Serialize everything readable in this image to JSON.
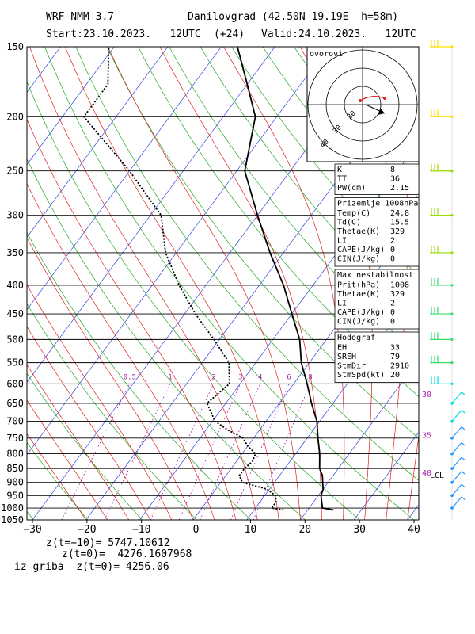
{
  "header": {
    "model": "WRF-NMM 3.7",
    "station": "Danilovgrad (42.50N 19.19E  h=58m)",
    "start": "Start:23.10.2023.   12UTC",
    "forecast": "(+24)",
    "valid": "Valid:24.10.2023.   12UTC"
  },
  "hodograph_inset": {
    "label": "ovorovi",
    "ring_labels": [
      "20",
      "30",
      "40"
    ]
  },
  "panels": {
    "indices": [
      {
        "k": "K",
        "v": "8"
      },
      {
        "k": "TT",
        "v": "36"
      },
      {
        "k": "PW(cm)",
        "v": "2.15"
      }
    ],
    "surface": {
      "title": "Prizemlje 1008hPa",
      "rows": [
        {
          "k": "Temp(C)",
          "v": "24.8"
        },
        {
          "k": "Td(C)",
          "v": "15.5"
        },
        {
          "k": "Thetae(K)",
          "v": "329"
        },
        {
          "k": "LI",
          "v": "2"
        },
        {
          "k": "CAPE(J/kg)",
          "v": "0"
        },
        {
          "k": "CIN(J/kg)",
          "v": "0"
        }
      ]
    },
    "max_instability": {
      "title": "Max nestabilnost",
      "rows": [
        {
          "k": "Prit(hPa)",
          "v": "1008"
        },
        {
          "k": "Thetae(K)",
          "v": "329"
        },
        {
          "k": "LI",
          "v": "2"
        },
        {
          "k": "CAPE(J/kg)",
          "v": "0"
        },
        {
          "k": "CIN(J/kg)",
          "v": "0"
        }
      ]
    },
    "hodograph": {
      "title": "Hodograf",
      "rows": [
        {
          "k": "EH",
          "v": "33"
        },
        {
          "k": "SREH",
          "v": "79"
        },
        {
          "k": "StmDir",
          "v": "2910"
        },
        {
          "k": "StmSpd(kt)",
          "v": "20"
        }
      ]
    }
  },
  "chart_data": {
    "type": "line",
    "subtype": "skew-T log-P sounding",
    "xlabel": "",
    "ylabel": "",
    "x_ticks": [
      "−30",
      "−20",
      "−10",
      "0",
      "10",
      "20",
      "30",
      "40"
    ],
    "xlim": [
      -30,
      40
    ],
    "y_ticks": [
      "150",
      "200",
      "250",
      "300",
      "350",
      "400",
      "450",
      "500",
      "550",
      "600",
      "650",
      "700",
      "750",
      "800",
      "850",
      "900",
      "950",
      "1000",
      "1050"
    ],
    "ylim": [
      1050,
      150
    ],
    "y_scale": "log (pressure, hPa)",
    "mixing_ratio_labels": [
      "0.5",
      "1",
      "2",
      "3",
      "4",
      "6",
      "8"
    ],
    "right_labels": [
      {
        "text": "30",
        "p": 625
      },
      {
        "text": "35",
        "p": 740
      },
      {
        "text": "40",
        "p": 863
      },
      {
        "text": "LCL",
        "p": 872
      }
    ],
    "series": [
      {
        "role": "temperature",
        "style": "solid",
        "points": [
          {
            "p": 1008,
            "t": 24.8
          },
          {
            "p": 1000,
            "t": 22.5
          },
          {
            "p": 975,
            "t": 21.5
          },
          {
            "p": 950,
            "t": 20.5
          },
          {
            "p": 925,
            "t": 20.0
          },
          {
            "p": 900,
            "t": 19.0
          },
          {
            "p": 875,
            "t": 18.0
          },
          {
            "p": 850,
            "t": 16.5
          },
          {
            "p": 800,
            "t": 14.5
          },
          {
            "p": 750,
            "t": 12.0
          },
          {
            "p": 700,
            "t": 9.5
          },
          {
            "p": 650,
            "t": 6.0
          },
          {
            "p": 600,
            "t": 2.5
          },
          {
            "p": 550,
            "t": -1.5
          },
          {
            "p": 500,
            "t": -5.0
          },
          {
            "p": 450,
            "t": -10.0
          },
          {
            "p": 400,
            "t": -15.5
          },
          {
            "p": 350,
            "t": -22.5
          },
          {
            "p": 300,
            "t": -30.0
          },
          {
            "p": 250,
            "t": -38.5
          },
          {
            "p": 200,
            "t": -44.0
          },
          {
            "p": 175,
            "t": -50.0
          },
          {
            "p": 150,
            "t": -57.0
          }
        ]
      },
      {
        "role": "dewpoint",
        "style": "dotted",
        "points": [
          {
            "p": 1008,
            "t": 15.5
          },
          {
            "p": 1000,
            "t": 13.0
          },
          {
            "p": 975,
            "t": 13.0
          },
          {
            "p": 950,
            "t": 12.0
          },
          {
            "p": 925,
            "t": 9.5
          },
          {
            "p": 900,
            "t": 4.0
          },
          {
            "p": 875,
            "t": 2.5
          },
          {
            "p": 850,
            "t": 2.5
          },
          {
            "p": 825,
            "t": 3.0
          },
          {
            "p": 800,
            "t": 2.5
          },
          {
            "p": 775,
            "t": 0.0
          },
          {
            "p": 750,
            "t": -2.0
          },
          {
            "p": 725,
            "t": -6.0
          },
          {
            "p": 700,
            "t": -9.5
          },
          {
            "p": 650,
            "t": -13.5
          },
          {
            "p": 600,
            "t": -12.0
          },
          {
            "p": 550,
            "t": -15.0
          },
          {
            "p": 500,
            "t": -21.0
          },
          {
            "p": 450,
            "t": -28.0
          },
          {
            "p": 400,
            "t": -35.0
          },
          {
            "p": 350,
            "t": -42.0
          },
          {
            "p": 300,
            "t": -48.0
          },
          {
            "p": 250,
            "t": -60.0
          },
          {
            "p": 200,
            "t": -76.0
          },
          {
            "p": 175,
            "t": -76.0
          },
          {
            "p": 150,
            "t": -81.0
          }
        ]
      }
    ],
    "wind_barb_levels": [
      150,
      200,
      250,
      300,
      350,
      400,
      450,
      500,
      550,
      600,
      650,
      700,
      750,
      800,
      850,
      900,
      950,
      1000
    ],
    "grid": true,
    "background_lines": [
      "isotherms (blue)",
      "dry adiabats (green)",
      "moist adiabats (red)",
      "mixing ratio (magenta, dotted)"
    ]
  },
  "footer": {
    "line1": "z(t=−10)= 5747.10612",
    "line2": "z(t=0)=  4276.1607968",
    "line3": "iz griba  z(t=0)= 4256.06"
  }
}
